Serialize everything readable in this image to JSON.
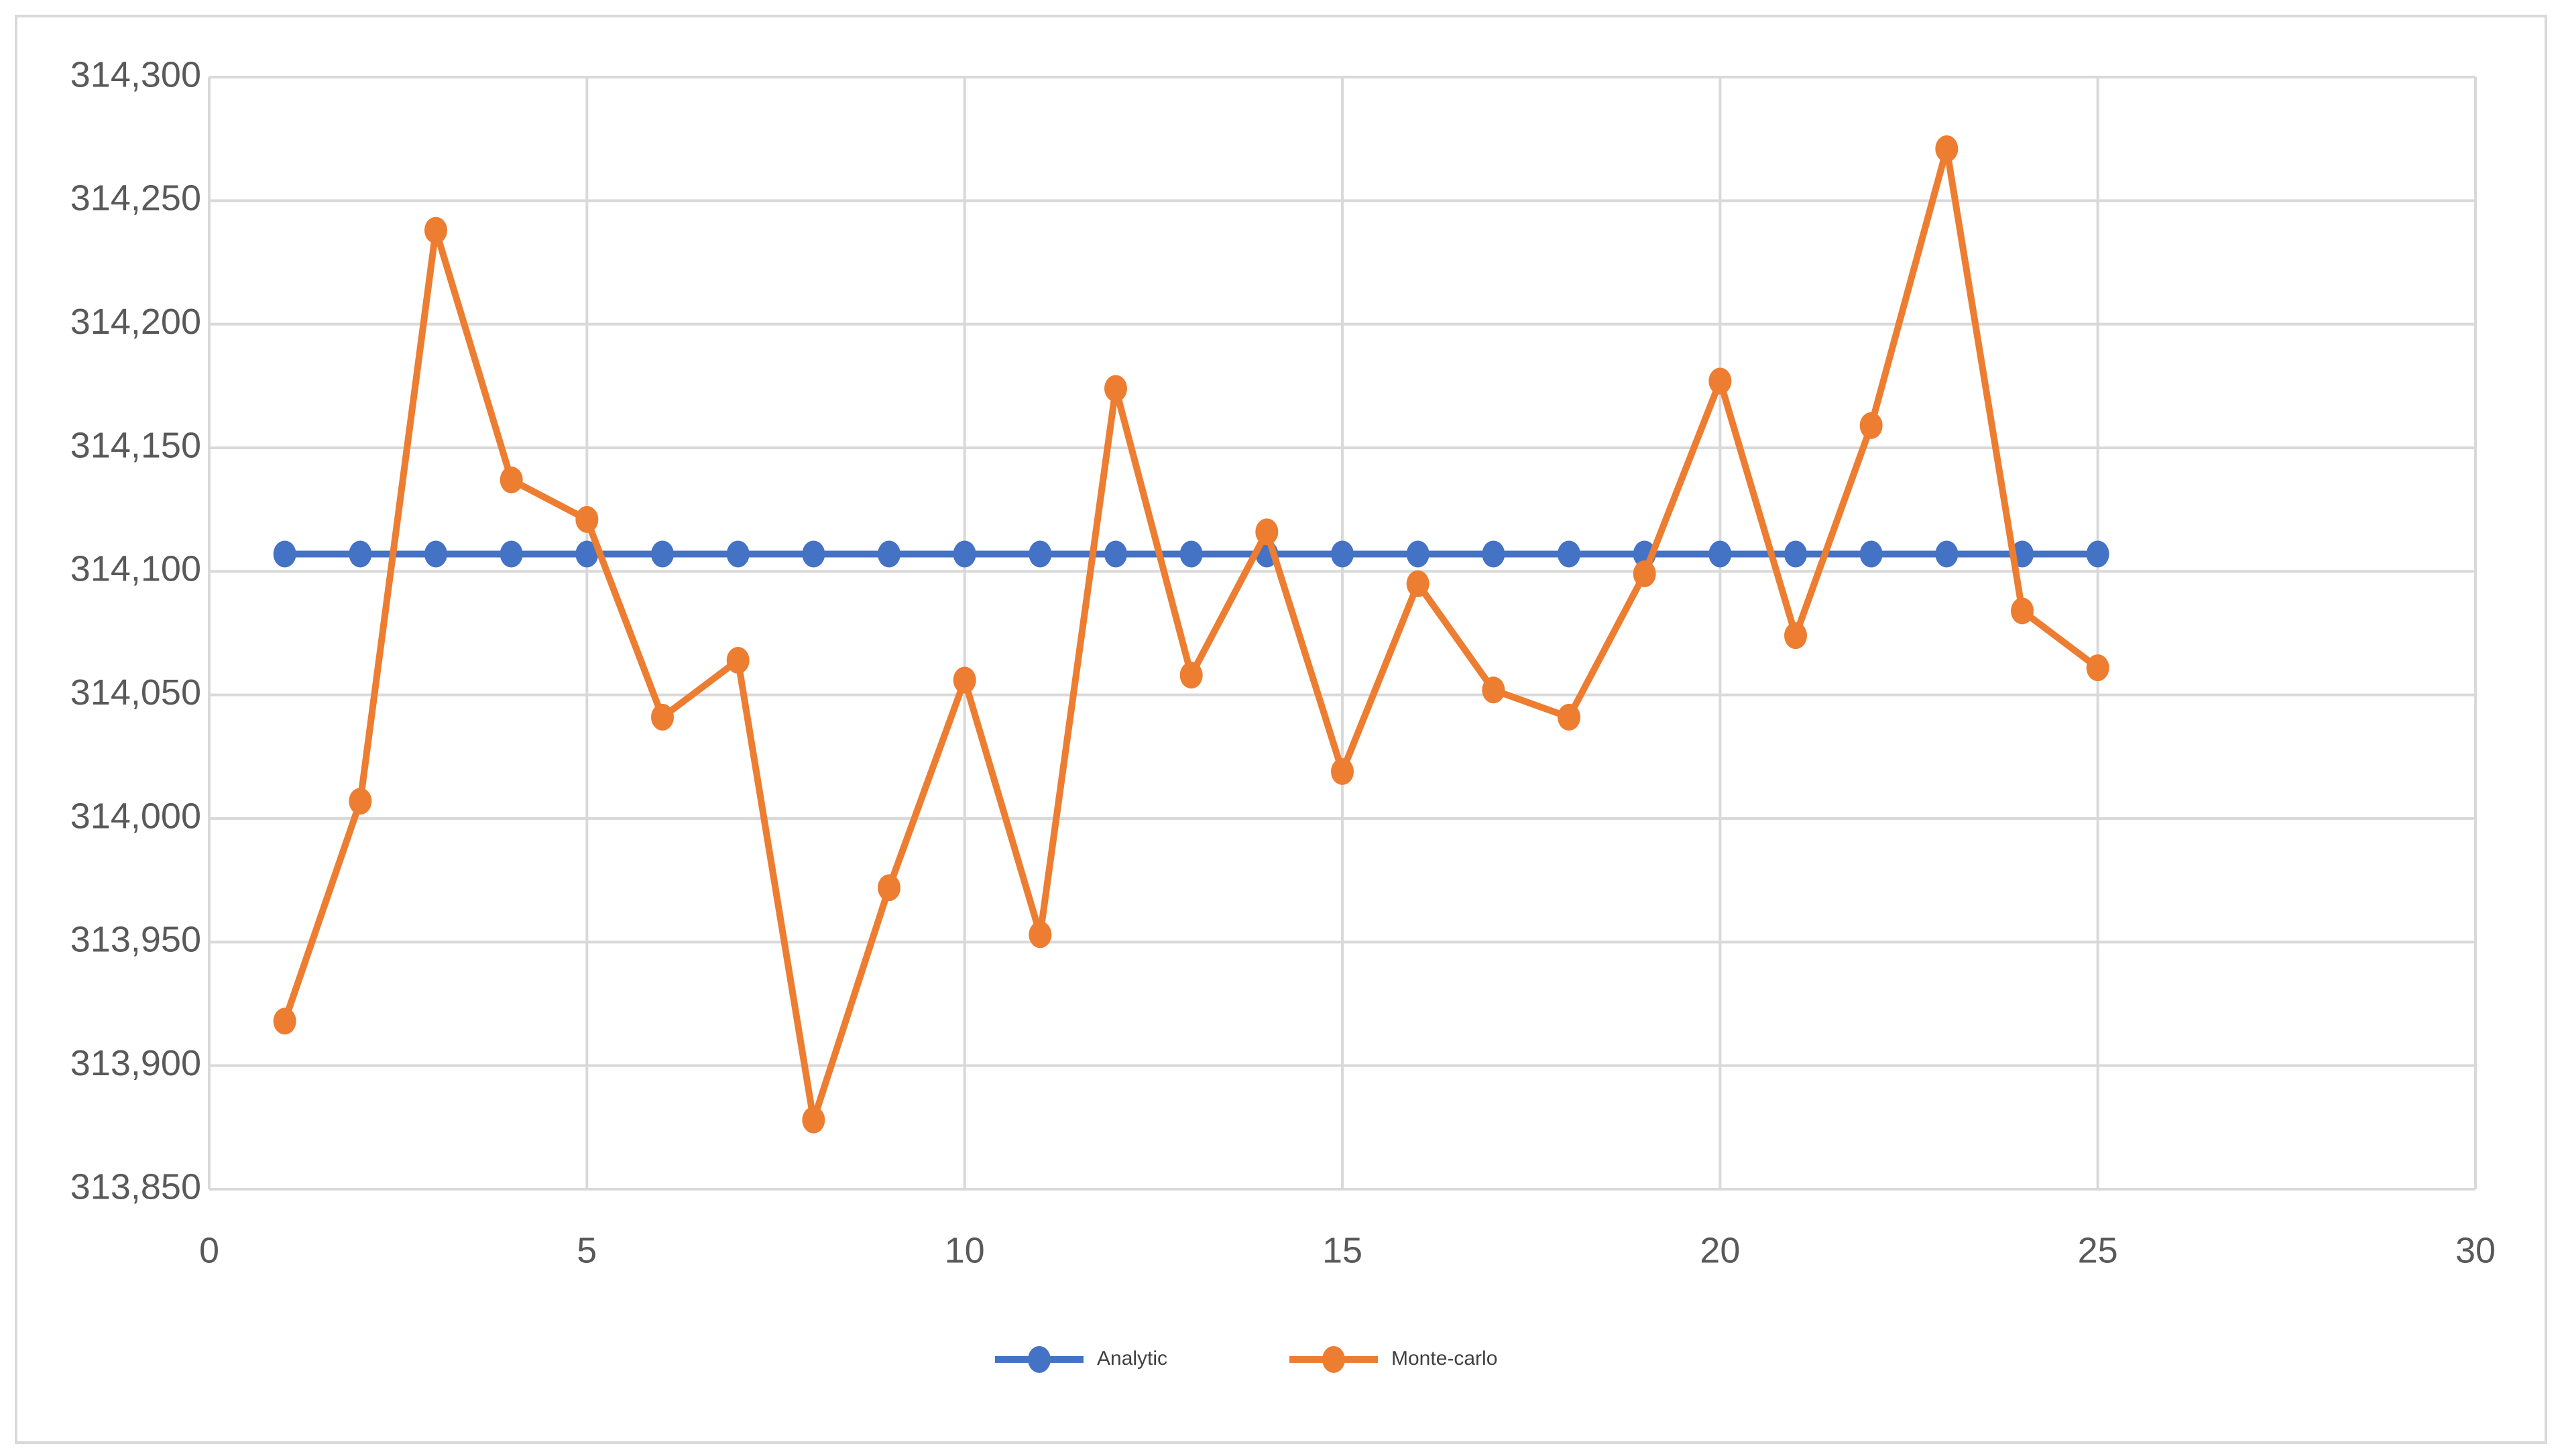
{
  "chart_data": {
    "type": "line",
    "x": [
      1,
      2,
      3,
      4,
      5,
      6,
      7,
      8,
      9,
      10,
      11,
      12,
      13,
      14,
      15,
      16,
      17,
      18,
      19,
      20,
      21,
      22,
      23,
      24,
      25
    ],
    "series": [
      {
        "name": "Analytic",
        "color": "#4472c4",
        "values": [
          314107,
          314107,
          314107,
          314107,
          314107,
          314107,
          314107,
          314107,
          314107,
          314107,
          314107,
          314107,
          314107,
          314107,
          314107,
          314107,
          314107,
          314107,
          314107,
          314107,
          314107,
          314107,
          314107,
          314107,
          314107
        ]
      },
      {
        "name": "Monte-carlo",
        "color": "#ed7d31",
        "values": [
          313918,
          314007,
          314238,
          314137,
          314121,
          314041,
          314064,
          313878,
          313972,
          314056,
          313953,
          314174,
          314058,
          314116,
          314019,
          314095,
          314052,
          314041,
          314099,
          314177,
          314074,
          314159,
          314271,
          314084,
          314061
        ]
      }
    ],
    "xlim": [
      0,
      30
    ],
    "xticks": [
      0,
      5,
      10,
      15,
      20,
      25,
      30
    ],
    "ylim": [
      313850,
      314300
    ],
    "yticks": [
      {
        "value": 313850,
        "label": "313,850"
      },
      {
        "value": 313900,
        "label": "313,900"
      },
      {
        "value": 313950,
        "label": "313,950"
      },
      {
        "value": 314000,
        "label": "314,000"
      },
      {
        "value": 314050,
        "label": "314,050"
      },
      {
        "value": 314100,
        "label": "314,100"
      },
      {
        "value": 314150,
        "label": "314,150"
      },
      {
        "value": 314200,
        "label": "314,200"
      },
      {
        "value": 314250,
        "label": "314,250"
      },
      {
        "value": 314300,
        "label": "314,300"
      }
    ],
    "grid": true,
    "legend": "bottom"
  }
}
